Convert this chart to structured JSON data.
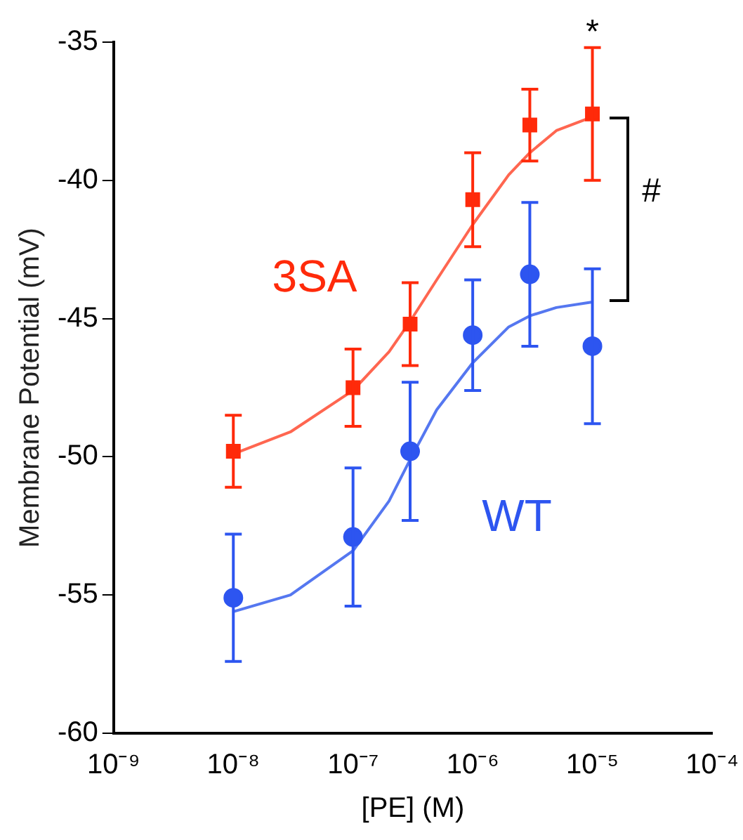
{
  "chart_data": {
    "type": "scatter",
    "xlabel": "[PE] (M)",
    "ylabel": "Membrane Potential (mV)",
    "log": "x",
    "grid": false,
    "legend": false,
    "xlim": [
      1e-09,
      0.0001
    ],
    "xticks": [
      {
        "value": 1e-09,
        "label": "10⁻⁹"
      },
      {
        "value": 1e-08,
        "label": "10⁻⁸"
      },
      {
        "value": 1e-07,
        "label": "10⁻⁷"
      },
      {
        "value": 1e-06,
        "label": "10⁻⁶"
      },
      {
        "value": 1e-05,
        "label": "10⁻⁵"
      },
      {
        "value": 0.0001,
        "label": "10⁻⁴"
      }
    ],
    "ylim": [
      -60,
      -35
    ],
    "yticks": [
      -60,
      -55,
      -50,
      -45,
      -40,
      -35
    ],
    "x": [
      1e-08,
      1e-07,
      3e-07,
      1e-06,
      3e-06,
      1e-05
    ],
    "series": [
      {
        "name": "3SA",
        "marker": "square",
        "color": "#ff2a0a",
        "values": [
          -49.8,
          -47.5,
          -45.2,
          -40.7,
          -38.0,
          -37.6
        ],
        "errors": [
          1.3,
          1.4,
          1.5,
          1.7,
          1.3,
          2.4
        ]
      },
      {
        "name": "WT",
        "marker": "circle",
        "color": "#2d55f0",
        "values": [
          -55.1,
          -52.9,
          -49.8,
          -45.6,
          -43.4,
          -46.0
        ],
        "errors": [
          2.3,
          2.5,
          2.5,
          2.0,
          2.6,
          2.8
        ]
      },
      {
        "type": "line",
        "marker": "none",
        "color": "#ff6650",
        "x": [
          1e-08,
          3e-08,
          1e-07,
          2e-07,
          3e-07,
          5e-07,
          1e-06,
          2e-06,
          3e-06,
          5e-06,
          1e-05
        ],
        "values": [
          -49.9,
          -49.1,
          -47.6,
          -46.2,
          -45.1,
          -43.6,
          -41.6,
          -39.8,
          -39.0,
          -38.2,
          -37.7
        ]
      },
      {
        "type": "line",
        "marker": "none",
        "color": "#5577f0",
        "x": [
          1e-08,
          3e-08,
          1e-07,
          2e-07,
          3e-07,
          5e-07,
          1e-06,
          2e-06,
          3e-06,
          5e-06,
          1e-05
        ],
        "values": [
          -55.6,
          -55.0,
          -53.4,
          -51.6,
          -50.1,
          -48.3,
          -46.6,
          -45.3,
          -44.9,
          -44.6,
          -44.4
        ]
      }
    ],
    "annotations": [
      {
        "text": "*",
        "x": 1e-05,
        "y": -35.4
      },
      "#"
    ]
  }
}
